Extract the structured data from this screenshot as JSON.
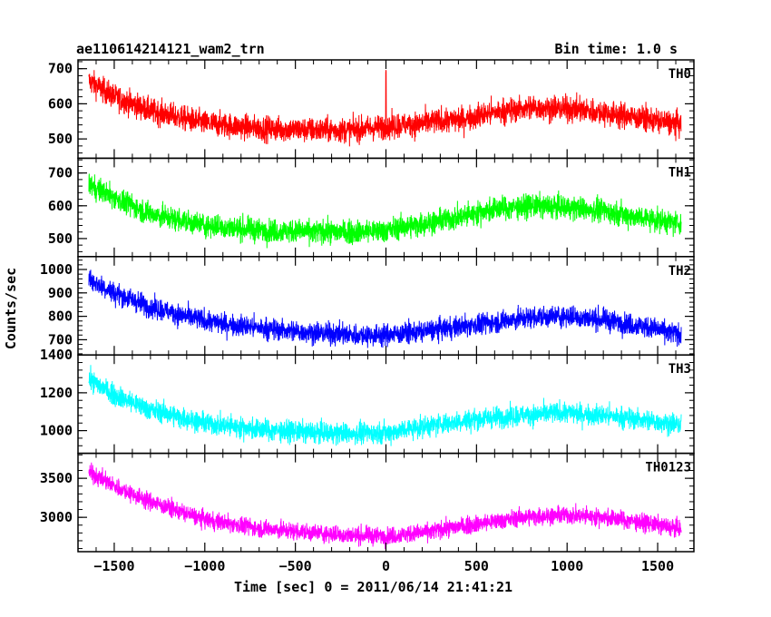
{
  "chart_data": {
    "type": "line",
    "title": "ae110614214121_wam2_trn",
    "subtitle": "Bin time: 1.0 s",
    "xlabel": "Time [sec] 0 = 2011/06/14 21:41:21",
    "ylabel": "Counts/sec",
    "xlim": [
      -1700,
      1700
    ],
    "x_ticks": [
      -1500,
      -1000,
      -500,
      0,
      500,
      1000,
      1500
    ],
    "x_range_data": [
      -1640,
      1630
    ],
    "grid": false,
    "legend": "none",
    "panels": [
      {
        "name": "TH0",
        "color": "#ff0000",
        "ylim": [
          445,
          725
        ],
        "y_ticks": [
          500,
          600,
          700
        ],
        "trend_x": [
          -1640,
          -1500,
          -1300,
          -1000,
          -700,
          -400,
          -200,
          0,
          200,
          400,
          600,
          800,
          1000,
          1200,
          1400,
          1630
        ],
        "trend_y": [
          665,
          620,
          580,
          545,
          530,
          525,
          525,
          535,
          545,
          555,
          575,
          590,
          585,
          575,
          560,
          540
        ],
        "noise": 35,
        "spike_x": 0,
        "spike_y": 700
      },
      {
        "name": "TH1",
        "color": "#00ff00",
        "ylim": [
          445,
          745
        ],
        "y_ticks": [
          500,
          600,
          700
        ],
        "trend_x": [
          -1640,
          -1500,
          -1300,
          -1000,
          -700,
          -400,
          -200,
          0,
          200,
          400,
          600,
          800,
          1000,
          1200,
          1400,
          1630
        ],
        "trend_y": [
          665,
          625,
          575,
          540,
          525,
          520,
          520,
          525,
          545,
          565,
          590,
          600,
          595,
          585,
          565,
          545
        ],
        "noise": 35
      },
      {
        "name": "TH2",
        "color": "#0000ff",
        "ylim": [
          635,
          1055
        ],
        "y_ticks": [
          700,
          800,
          900,
          1000
        ],
        "trend_x": [
          -1640,
          -1500,
          -1300,
          -1000,
          -700,
          -400,
          -200,
          0,
          200,
          400,
          600,
          800,
          1000,
          1200,
          1400,
          1630
        ],
        "trend_y": [
          960,
          900,
          840,
          780,
          750,
          730,
          720,
          720,
          735,
          755,
          775,
          795,
          800,
          785,
          760,
          720
        ],
        "noise": 45
      },
      {
        "name": "TH3",
        "color": "#00ffff",
        "ylim": [
          880,
          1400
        ],
        "y_ticks": [
          1000,
          1200,
          1400
        ],
        "trend_x": [
          -1640,
          -1500,
          -1300,
          -1000,
          -700,
          -400,
          -200,
          0,
          200,
          400,
          600,
          800,
          1000,
          1200,
          1400,
          1630
        ],
        "trend_y": [
          1270,
          1190,
          1110,
          1040,
          1005,
          990,
          985,
          990,
          1020,
          1050,
          1070,
          1085,
          1095,
          1080,
          1060,
          1030
        ],
        "noise": 55
      },
      {
        "name": "TH0123",
        "color": "#ff00ff",
        "ylim": [
          2560,
          3820
        ],
        "y_ticks": [
          3000,
          3500
        ],
        "trend_x": [
          -1640,
          -1500,
          -1300,
          -1000,
          -700,
          -400,
          -200,
          0,
          200,
          400,
          600,
          800,
          1000,
          1200,
          1400,
          1630
        ],
        "trend_y": [
          3580,
          3400,
          3200,
          2970,
          2860,
          2800,
          2770,
          2760,
          2800,
          2880,
          2950,
          3010,
          3030,
          3000,
          2940,
          2850
        ],
        "noise": 110
      }
    ]
  }
}
